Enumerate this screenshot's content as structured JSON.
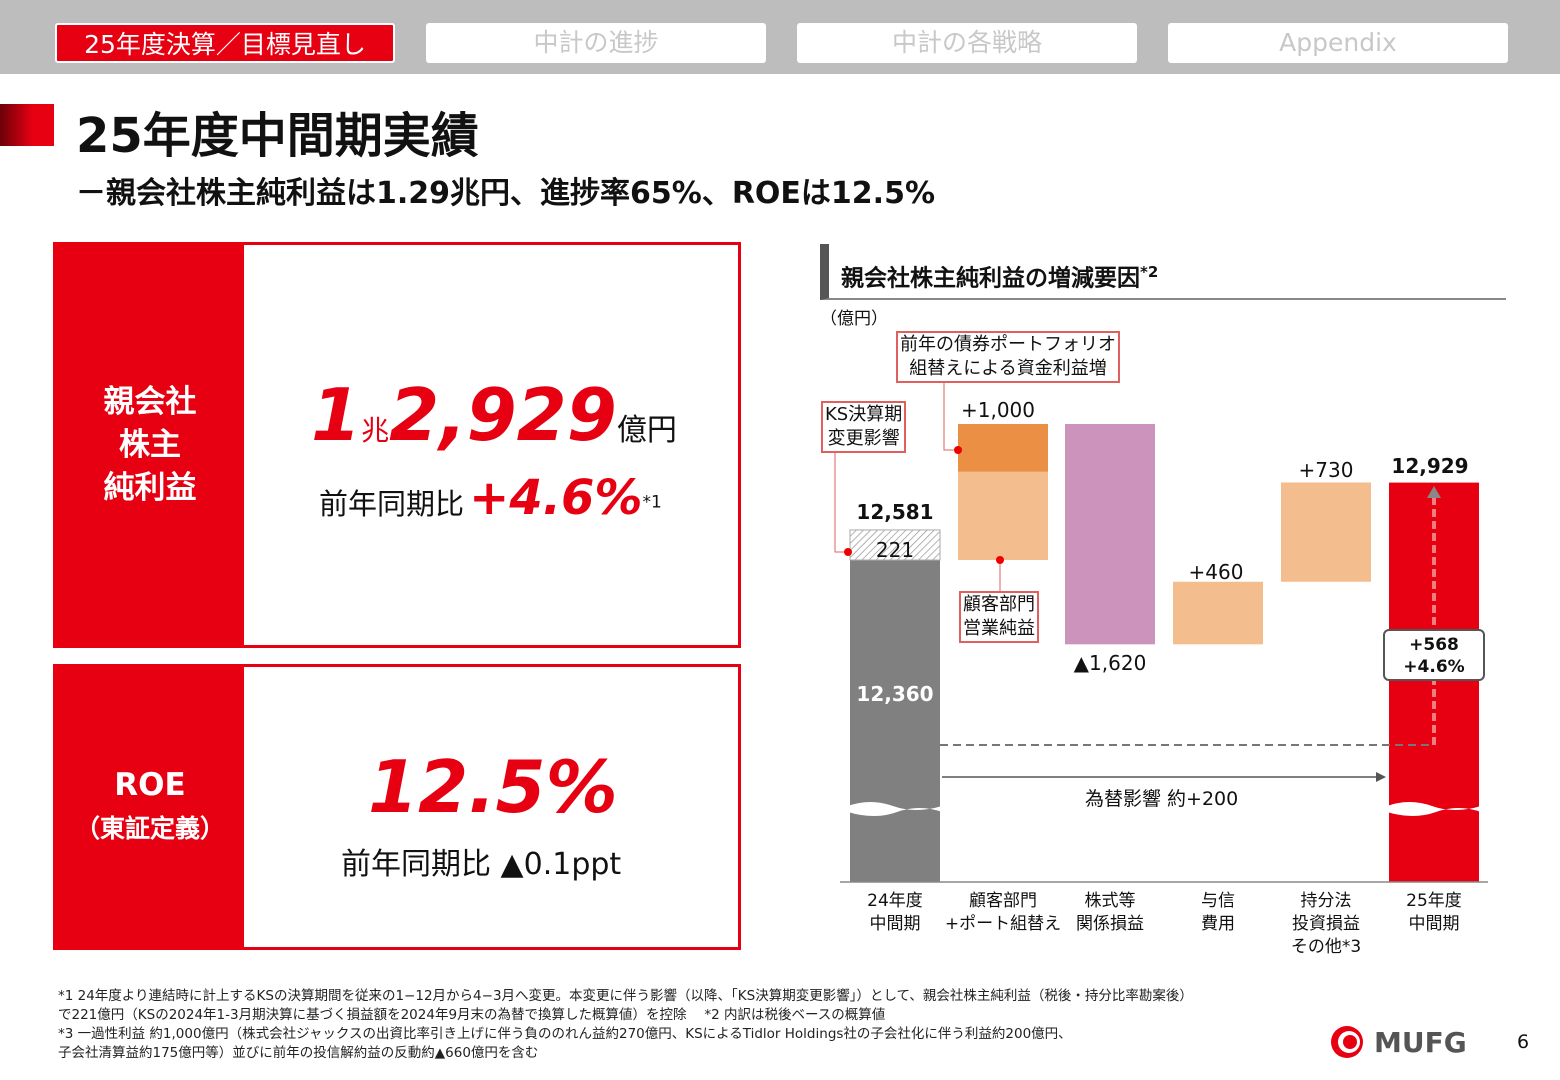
{
  "tabs": [
    "25年度決算／目標見直し",
    "中計の進捗",
    "中計の各戦略",
    "Appendix"
  ],
  "title": "25年度中間期実績",
  "subtitle": "－親会社株主純利益は1.29兆円、進捗率65%、ROEは12.5%",
  "card1": {
    "label": [
      "親会社",
      "株主",
      "純利益"
    ],
    "value_a": "1",
    "unit_a": "兆",
    "value_b": "2,929",
    "unit_b": "億円",
    "yoy_label": "前年同期比",
    "yoy": "+4.6%",
    "note": "*1"
  },
  "card2": {
    "label": [
      "ROE",
      "（東証定義）"
    ],
    "value": "12.5%",
    "yoy_label": "前年同期比",
    "yoy": "▲0.1ppt"
  },
  "chart_data": {
    "type": "waterfall",
    "title": "親会社株主純利益の増減要因",
    "title_note": "*2",
    "unit": "（億円）",
    "categories": [
      "24年度\n中間期",
      "顧客部門\n+ポート組替え",
      "株式等\n関係損益",
      "与信\n費用",
      "持分法\n投資損益\nその他*3",
      "25年度\n中間期"
    ],
    "start": {
      "total": 12581,
      "base": 12360,
      "ks_adjust": 221
    },
    "deltas": [
      1000,
      -1620,
      460,
      730
    ],
    "delta_labels": [
      "+1,000",
      "▲1,620",
      "+460",
      "+730"
    ],
    "split_first": {
      "bond_portfolio_est": 350
    },
    "end": 12929,
    "labels": {
      "start_total": "12,581",
      "start_base": "12,360",
      "ks": "221",
      "end": "12,929",
      "change": "+568",
      "change_pct": "+4.6%",
      "fx": "為替影響 約+200"
    },
    "callouts": [
      "KS決算期\n変更影響",
      "前年の債券ポートフォリオ\n組替えによる資金利益増",
      "顧客部門\n営業純益"
    ],
    "colors": {
      "base": "#808080",
      "orange_dark": "#eb8f45",
      "orange_light": "#f4bd8e",
      "equity": "#cc94bd",
      "end": "#e60012"
    }
  },
  "footnotes": [
    "*1  24年度より連結時に計上するKSの決算期間を従来の1−12月から4−3月へ変更。本変更に伴う影響（以降、「KS決算期変更影響」）として、親会社株主純利益（税後・持分比率勘案後）",
    "で221億円（KSの2024年1-3月期決算に基づく損益額を2024年9月末の為替で換算した概算値）を控除　 *2  内訳は税後ベースの概算値",
    "*3  一過性利益 約1,000億円（株式会社ジャックスの出資比率引き上げに伴う負ののれん益約270億円、KSによるTidlor Holdings社の子会社化に伴う利益約200億円、",
    "子会社清算益約175億円等）並びに前年の投信解約益の反動約▲660億円を含む"
  ],
  "logo": "MUFG",
  "page": "6"
}
